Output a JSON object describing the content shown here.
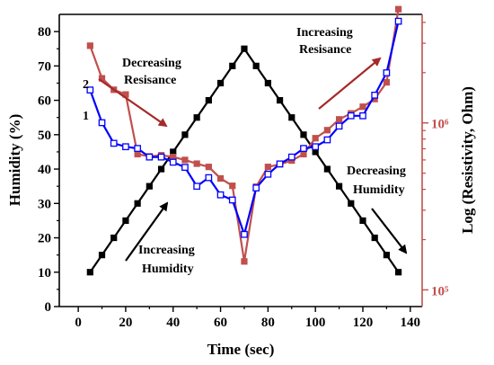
{
  "chart_data": {
    "type": "line",
    "xlabel": "Time (sec)",
    "ylabel_left": "Humidity (%)",
    "ylabel_right": "Log (Resistivity, Ohm)",
    "xlim": [
      -8,
      145
    ],
    "ylim_left": [
      0,
      85
    ],
    "ylim_right_log10": [
      4.9,
      6.65
    ],
    "x_ticks": [
      0,
      20,
      40,
      60,
      80,
      100,
      120,
      140
    ],
    "y_left_ticks": [
      0,
      10,
      20,
      30,
      40,
      50,
      60,
      70,
      80
    ],
    "y_right_ticks": [
      {
        "value": 100000,
        "label": "10⁵"
      },
      {
        "value": 1000000,
        "label": "10⁶"
      }
    ],
    "grid": false,
    "legend": "none",
    "series": [
      {
        "axis": "left",
        "color": "#000000",
        "marker": "filled-square",
        "x": [
          5,
          10,
          15,
          20,
          25,
          30,
          35,
          40,
          45,
          50,
          55,
          60,
          65,
          70,
          75,
          80,
          85,
          90,
          95,
          100,
          105,
          110,
          115,
          120,
          125,
          130,
          135
        ],
        "y": [
          10,
          15,
          20,
          25,
          30,
          35,
          40,
          45,
          50,
          55,
          60,
          65,
          70,
          75,
          70,
          65,
          60,
          55,
          50,
          45,
          40,
          35,
          30,
          25,
          20,
          15,
          10
        ]
      },
      {
        "axis": "left",
        "color": "#0000ff",
        "marker": "open-square",
        "label": "2",
        "x": [
          5,
          10,
          15,
          20,
          25,
          30,
          35,
          40,
          45,
          50,
          55,
          60,
          65,
          70,
          75,
          80,
          85,
          90,
          95,
          100,
          105,
          110,
          115,
          120,
          125,
          130,
          135
        ],
        "y": [
          63,
          53.5,
          47.5,
          46.5,
          46,
          43.5,
          43.5,
          42,
          40.5,
          35,
          37.5,
          32.5,
          31,
          21,
          34.5,
          38.5,
          41.5,
          43.5,
          46,
          46.5,
          48.5,
          52.5,
          55.5,
          55.5,
          61.5,
          68,
          83
        ]
      },
      {
        "axis": "right",
        "color": "#c0504d",
        "marker": "filled-square",
        "label": "1",
        "x": [
          5,
          10,
          15,
          20,
          25,
          30,
          35,
          40,
          45,
          50,
          55,
          60,
          65,
          70,
          75,
          80,
          85,
          90,
          95,
          100,
          105,
          110,
          115,
          120,
          125,
          130,
          135
        ],
        "y": [
          2900000,
          1850000,
          1580000,
          1480000,
          650000,
          630000,
          640000,
          625000,
          600000,
          570000,
          545000,
          465000,
          420000,
          148000,
          415000,
          545000,
          565000,
          595000,
          650000,
          810000,
          905000,
          1050000,
          1140000,
          1250000,
          1390000,
          1750000,
          4800000
        ]
      }
    ],
    "annotations": [
      {
        "lines": [
          "Decreasing",
          "Resisance"
        ],
        "arrow_color": "#a52a2a"
      },
      {
        "lines": [
          "Increasing",
          "Resisance"
        ],
        "arrow_color": "#a52a2a"
      },
      {
        "lines": [
          "Increasing",
          "Humidity"
        ],
        "arrow_color": "#000000"
      },
      {
        "lines": [
          "Decreasing",
          "Humidity"
        ],
        "arrow_color": "#000000"
      }
    ]
  }
}
